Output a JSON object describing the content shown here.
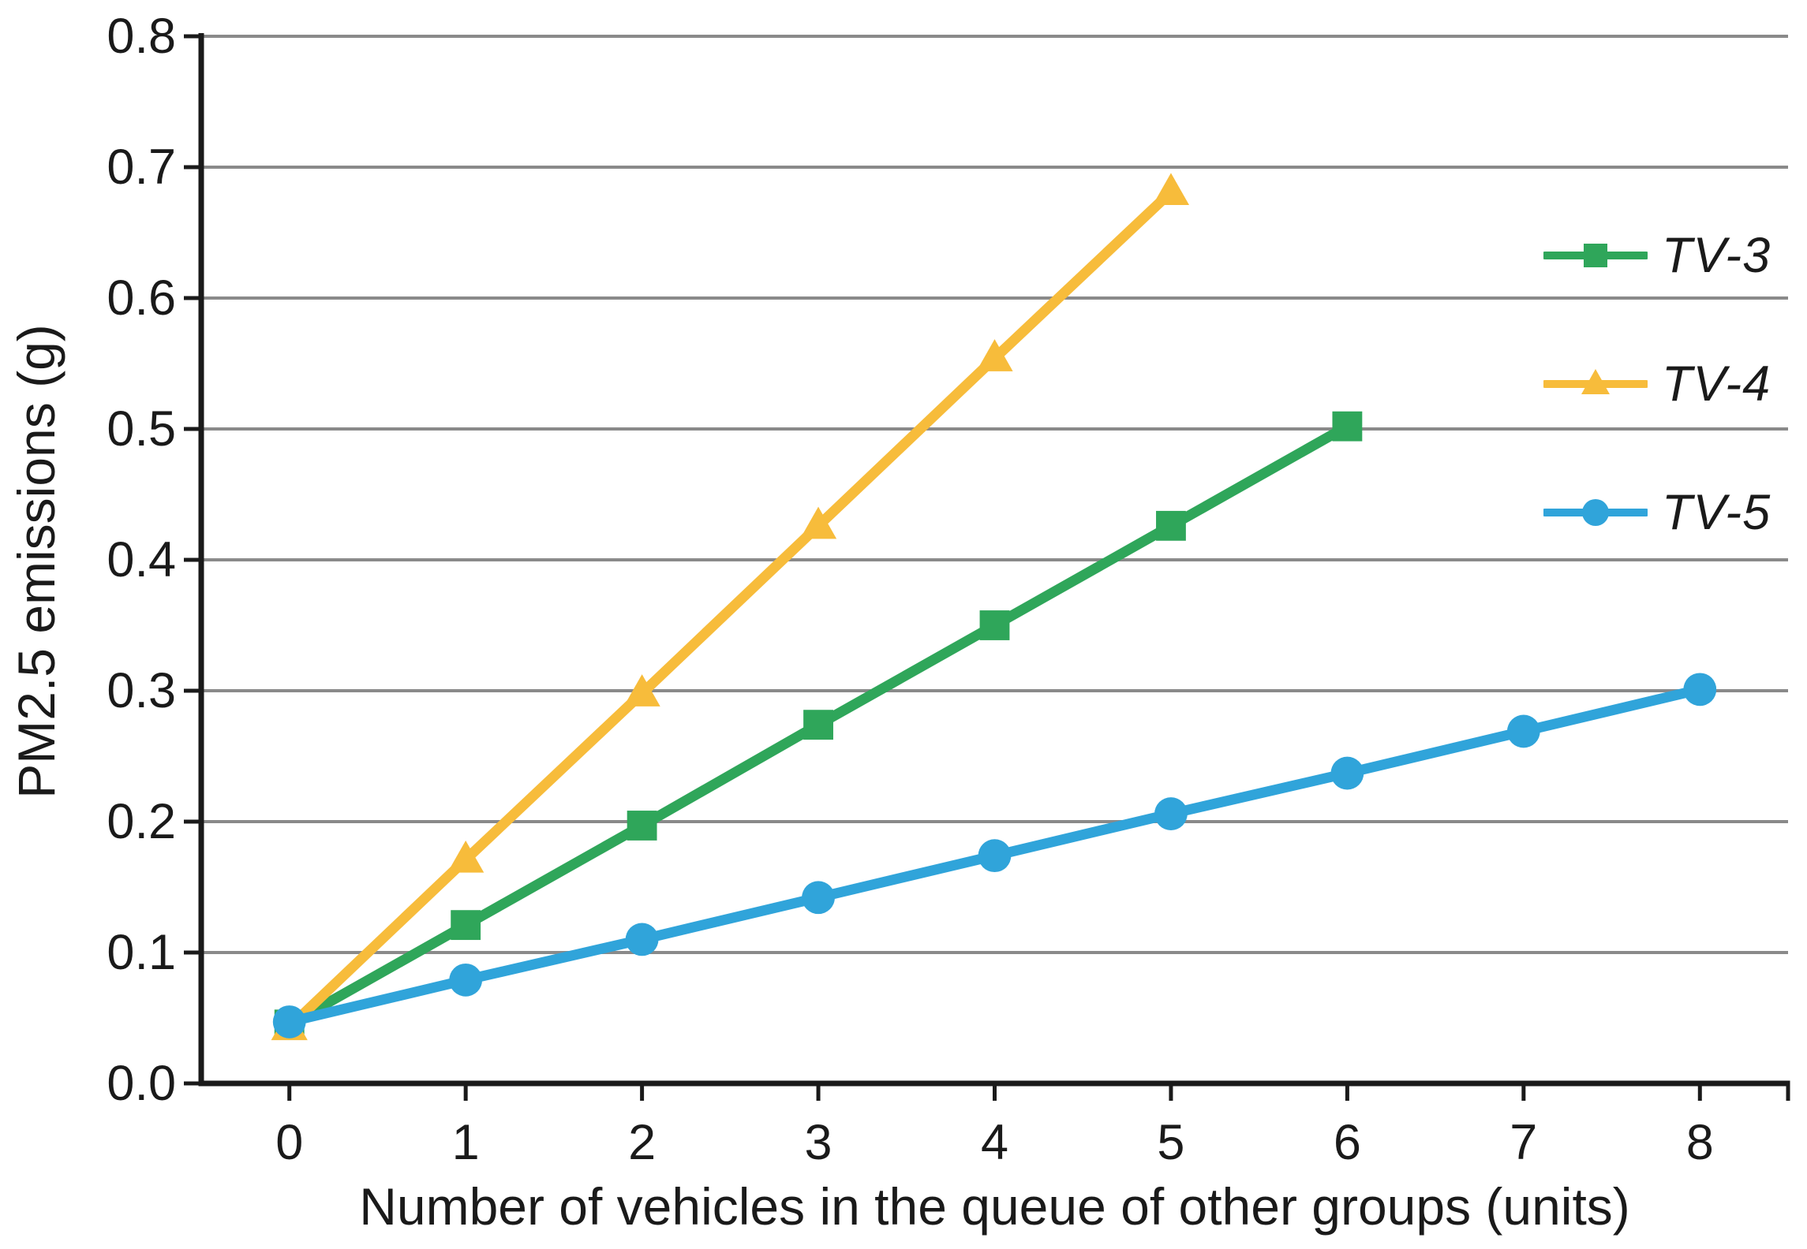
{
  "chart_data": {
    "type": "line",
    "title": "",
    "x_axis": {
      "label": "Number of vehicles in the queue of other groups (units)",
      "min": 0,
      "max": 8,
      "tick_labels": [
        "0",
        "1",
        "2",
        "3",
        "4",
        "5",
        "6",
        "7",
        "8"
      ],
      "range_pad_units": 0.5
    },
    "y_axis": {
      "label": "PM2.5 emissions (g)",
      "min": 0.0,
      "max": 0.8,
      "tick_step": 0.1,
      "tick_labels": [
        "0.0",
        "0.1",
        "0.2",
        "0.3",
        "0.4",
        "0.5",
        "0.6",
        "0.7",
        "0.8"
      ]
    },
    "grid": "horizontal",
    "legend_position": "right",
    "series": [
      {
        "name": "TV-3",
        "color": "#2FA65A",
        "marker": "square",
        "x": [
          0,
          1,
          2,
          3,
          4,
          5,
          6
        ],
        "y": [
          0.045,
          0.121,
          0.197,
          0.274,
          0.35,
          0.426,
          0.502
        ]
      },
      {
        "name": "TV-4",
        "color": "#F7BC3B",
        "marker": "triangle",
        "x": [
          0,
          1,
          2,
          3,
          4,
          5
        ],
        "y": [
          0.043,
          0.171,
          0.298,
          0.426,
          0.554,
          0.681
        ]
      },
      {
        "name": "TV-5",
        "color": "#30A4DA",
        "marker": "circle",
        "x": [
          0,
          1,
          2,
          3,
          4,
          5,
          6,
          7,
          8
        ],
        "y": [
          0.047,
          0.079,
          0.11,
          0.142,
          0.174,
          0.206,
          0.237,
          0.269,
          0.301
        ]
      }
    ],
    "colors": {
      "grid": "#8A8A8A",
      "axis": "#1A1A1A",
      "text": "#1A1A1A",
      "background": "#FFFFFF"
    }
  }
}
